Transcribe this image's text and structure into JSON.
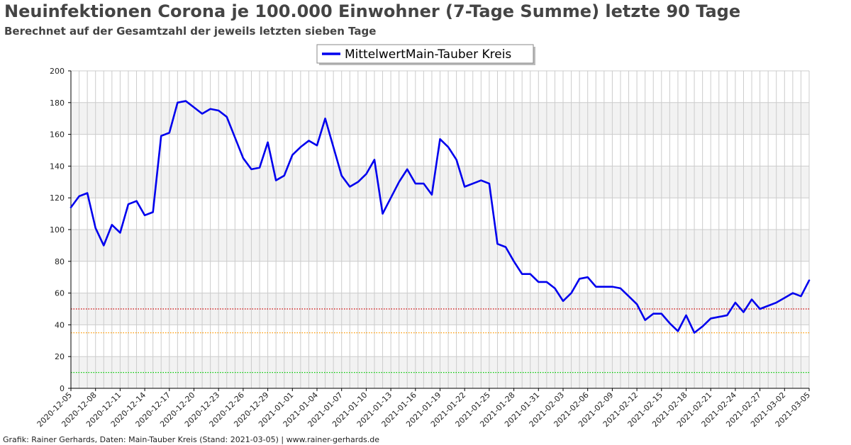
{
  "title": "Neuinfektionen Corona je 100.000 Einwohner (7-Tage Summe) letzte 90 Tage",
  "subtitle": "Berechnet auf der Gesamtzahl der jeweils letzten sieben Tage",
  "footer": "Grafik: Rainer Gerhards, Daten: Main-Tauber Kreis (Stand: 2021-03-05) | www.rainer-gerhards.de",
  "colors": {
    "line": "#0000ee",
    "red_line": "#cc0000",
    "orange_line": "#ff9900",
    "green_line": "#00cc00",
    "band": "#f2f2f2",
    "grid": "#cccccc"
  },
  "chart_data": {
    "type": "line",
    "legend_position": "top-center",
    "grid": true,
    "ylim": [
      0,
      200
    ],
    "yticks": [
      0,
      20,
      40,
      60,
      80,
      100,
      120,
      140,
      160,
      180,
      200
    ],
    "x_start": "2020-12-05",
    "x_end": "2021-03-05",
    "xticks": [
      "2020-12-05",
      "2020-12-08",
      "2020-12-11",
      "2020-12-14",
      "2020-12-17",
      "2020-12-20",
      "2020-12-23",
      "2020-12-26",
      "2020-12-29",
      "2021-01-01",
      "2021-01-04",
      "2021-01-07",
      "2021-01-10",
      "2021-01-13",
      "2021-01-16",
      "2021-01-19",
      "2021-01-22",
      "2021-01-25",
      "2021-01-28",
      "2021-01-31",
      "2021-02-03",
      "2021-02-06",
      "2021-02-09",
      "2021-02-12",
      "2021-02-15",
      "2021-02-18",
      "2021-02-21",
      "2021-02-24",
      "2021-02-27",
      "2021-03-02",
      "2021-03-05"
    ],
    "reference_lines": [
      {
        "value": 50,
        "color": "#cc0000"
      },
      {
        "value": 35,
        "color": "#ff9900"
      },
      {
        "value": 10,
        "color": "#00cc00"
      }
    ],
    "series": [
      {
        "name": "MittelwertMain-Tauber Kreis",
        "color": "#0000ee",
        "values": [
          114,
          121,
          123,
          101,
          90,
          103,
          98,
          116,
          118,
          109,
          111,
          159,
          161,
          180,
          181,
          177,
          173,
          176,
          175,
          171,
          158,
          145,
          138,
          139,
          155,
          131,
          134,
          147,
          152,
          156,
          153,
          170,
          152,
          134,
          127,
          130,
          135,
          144,
          110,
          120,
          130,
          138,
          129,
          129,
          122,
          157,
          152,
          144,
          127,
          129,
          131,
          129,
          91,
          89,
          80,
          72,
          72,
          67,
          67,
          63,
          55,
          60,
          69,
          70,
          64,
          64,
          64,
          63,
          58,
          53,
          43,
          47,
          47,
          41,
          36,
          46,
          35,
          39,
          44,
          45,
          46,
          54,
          48,
          56,
          50,
          52,
          54,
          57,
          60,
          58,
          68
        ]
      }
    ]
  }
}
